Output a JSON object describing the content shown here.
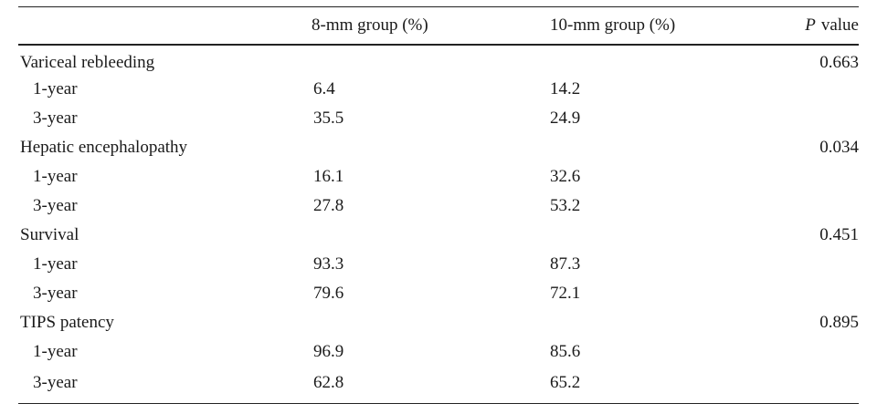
{
  "table": {
    "headers": {
      "outcome": "",
      "group8": "8-mm group (%)",
      "group10": "10-mm group (%)",
      "p_letter": "P",
      "p_word": "value"
    },
    "sections": [
      {
        "label": "Variceal rebleeding",
        "p_value": "0.663",
        "rows": [
          {
            "time": "1-year",
            "g8": "6.4",
            "g10": "14.2"
          },
          {
            "time": "3-year",
            "g8": "35.5",
            "g10": "24.9"
          }
        ]
      },
      {
        "label": "Hepatic encephalopathy",
        "p_value": "0.034",
        "rows": [
          {
            "time": "1-year",
            "g8": "16.1",
            "g10": "32.6"
          },
          {
            "time": "3-year",
            "g8": "27.8",
            "g10": "53.2"
          }
        ]
      },
      {
        "label": "Survival",
        "p_value": "0.451",
        "rows": [
          {
            "time": "1-year",
            "g8": "93.3",
            "g10": "87.3"
          },
          {
            "time": "3-year",
            "g8": "79.6",
            "g10": "72.1"
          }
        ]
      },
      {
        "label": "TIPS patency",
        "p_value": "0.895",
        "rows": [
          {
            "time": "1-year",
            "g8": "96.9",
            "g10": "85.6"
          },
          {
            "time": "3-year",
            "g8": "62.8",
            "g10": "65.2"
          }
        ]
      }
    ]
  }
}
